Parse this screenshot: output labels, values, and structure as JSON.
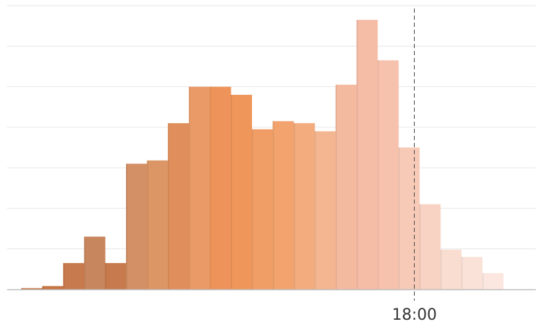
{
  "chart_data": {
    "type": "bar",
    "title": "",
    "xlabel": "",
    "ylabel": "",
    "grid": true,
    "ylim": [
      0,
      70
    ],
    "bars": [
      {
        "value": 0.3,
        "color": "#c87a48"
      },
      {
        "value": 0.8,
        "color": "#c67442"
      },
      {
        "value": 6.5,
        "color": "#c77a4d"
      },
      {
        "value": 13.0,
        "color": "#c8865e"
      },
      {
        "value": 6.5,
        "color": "#c77a4d"
      },
      {
        "value": 31.0,
        "color": "#d38f65"
      },
      {
        "value": 31.8,
        "color": "#dc9564"
      },
      {
        "value": 41.0,
        "color": "#e08f5c"
      },
      {
        "value": 50.0,
        "color": "#e99a66"
      },
      {
        "value": 50.0,
        "color": "#ee945a"
      },
      {
        "value": 48.0,
        "color": "#ef965b"
      },
      {
        "value": 39.5,
        "color": "#f19e66"
      },
      {
        "value": 41.5,
        "color": "#f2a36e"
      },
      {
        "value": 41.0,
        "color": "#f2ac7d"
      },
      {
        "value": 39.0,
        "color": "#f4b691"
      },
      {
        "value": 50.5,
        "color": "#f3baa0"
      },
      {
        "value": 66.5,
        "color": "#f5bca6"
      },
      {
        "value": 56.5,
        "color": "#f6c2ad"
      },
      {
        "value": 35.0,
        "color": "#f7cab7"
      },
      {
        "value": 21.0,
        "color": "#f8d2c3"
      },
      {
        "value": 9.8,
        "color": "#f9ddd1"
      },
      {
        "value": 8.0,
        "color": "#fae2d8"
      },
      {
        "value": 4.0,
        "color": "#fbe7df"
      }
    ],
    "marker": {
      "label": "18:00",
      "position": 19
    },
    "tick_labels": [
      "18:00"
    ]
  }
}
